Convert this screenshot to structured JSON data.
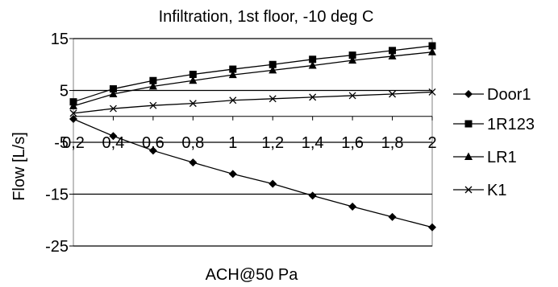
{
  "chart_data": {
    "type": "line",
    "title": "Infiltration, 1st floor, -10 deg C",
    "xlabel": "ACH@50 Pa",
    "ylabel": "Flow [L/s]",
    "x": [
      0.2,
      0.4,
      0.6,
      0.8,
      1,
      1.2,
      1.4,
      1.6,
      1.8,
      2
    ],
    "x_tick_labels": [
      "0,2",
      "0,4",
      "0,6",
      "0,8",
      "1",
      "1,2",
      "1,4",
      "1,6",
      "1,8",
      "2"
    ],
    "y_tick_labels": [
      "15",
      "5",
      "-5",
      "-15",
      "-25"
    ],
    "ylim": [
      -25,
      15
    ],
    "xlim": [
      0.2,
      2
    ],
    "grid": "horizontal",
    "legend_position": "right",
    "series": [
      {
        "name": "Door1",
        "marker": "diamond",
        "x": [
          0.2,
          0.4,
          0.6,
          0.8,
          1,
          1.2,
          1.4,
          1.6,
          1.8,
          2
        ],
        "values": [
          -0.5,
          -3.8,
          -6.6,
          -8.9,
          -11.1,
          -13.0,
          -15.3,
          -17.4,
          -19.4,
          -21.4
        ]
      },
      {
        "name": "1R123",
        "marker": "square",
        "x": [
          0.2,
          0.4,
          0.6,
          0.8,
          1,
          1.2,
          1.4,
          1.6,
          1.8,
          2
        ],
        "values": [
          2.8,
          5.3,
          6.9,
          8.1,
          9.1,
          10.0,
          11.0,
          11.8,
          12.7,
          13.6
        ]
      },
      {
        "name": "LR1",
        "marker": "triangle",
        "x": [
          0.2,
          0.4,
          0.6,
          0.8,
          1,
          1.2,
          1.4,
          1.6,
          1.8,
          2
        ],
        "values": [
          2.0,
          4.3,
          5.8,
          6.9,
          8.0,
          8.9,
          9.8,
          10.8,
          11.6,
          12.4
        ]
      },
      {
        "name": "K1",
        "marker": "x",
        "x": [
          0.2,
          0.4,
          0.6,
          0.8,
          1,
          1.2,
          1.4,
          1.6,
          1.8,
          2
        ],
        "values": [
          0.6,
          1.5,
          2.1,
          2.5,
          3.1,
          3.4,
          3.7,
          4.0,
          4.3,
          4.7
        ]
      }
    ]
  }
}
